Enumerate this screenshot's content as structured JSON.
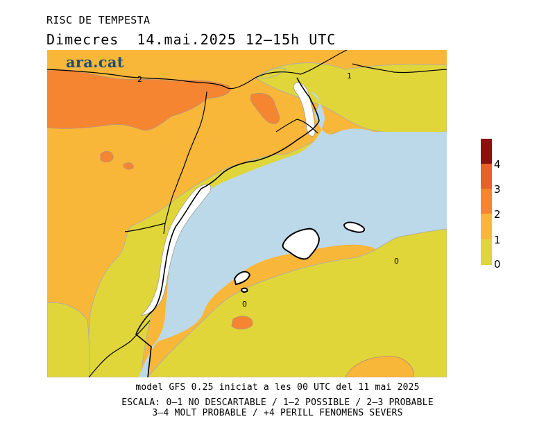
{
  "header": {
    "title": "RISC DE TEMPESTA",
    "subtitle": "Dimecres  14.mai.2025 12–15h UTC"
  },
  "logo": {
    "text": "ara.cat",
    "color": "#1a4e75"
  },
  "map": {
    "colors": {
      "level_0_1": "#e0d63a",
      "level_1_2": "#f9b73a",
      "level_2_3": "#f58530",
      "level_3_4": "#e8602a",
      "level_4": "#8b1010",
      "sea": "#bcd9ea",
      "land_undefined": "#ffffff"
    },
    "contour_labels": [
      "2",
      "1",
      "0",
      "0"
    ]
  },
  "legend": {
    "labels": [
      "4",
      "3",
      "2",
      "1",
      "0"
    ]
  },
  "footer": {
    "model_line": "model GFS 0.25 iniciat a les 00 UTC del 11 mai 2025",
    "scale_line1": "ESCALA: 0–1 NO DESCARTABLE / 1–2 POSSIBLE / 2–3 PROBABLE",
    "scale_line2": "3–4 MOLT PROBABLE / +4 PERILL FENOMENS SEVERS"
  }
}
